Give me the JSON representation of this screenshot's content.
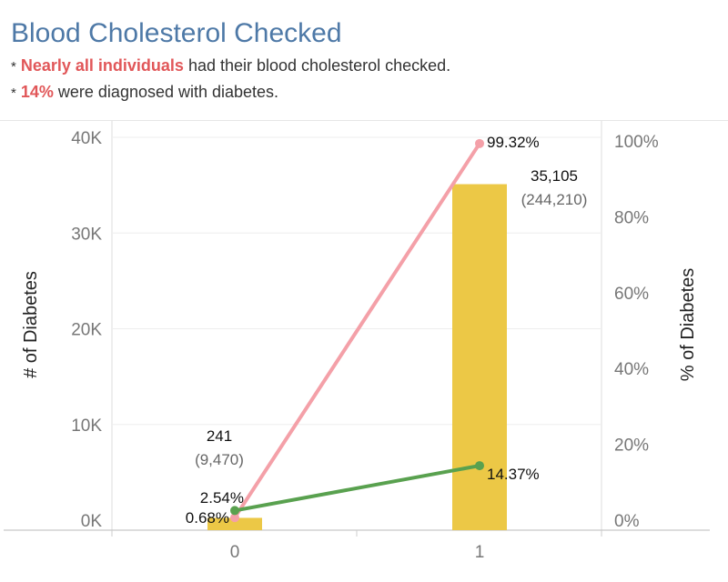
{
  "header": {
    "title": "Blood Cholesterol Checked",
    "line1": {
      "bullet": "*",
      "highlight": "Nearly all individuals",
      "rest": "had their blood cholesterol checked."
    },
    "line2": {
      "bullet": "*",
      "highlight": "14%",
      "rest": "were diagnosed with diabetes."
    }
  },
  "chart_data": {
    "type": "bar",
    "categories": [
      "0",
      "1"
    ],
    "ylabel": "# of Diabetes",
    "y2label": "% of Diabetes",
    "ylim": [
      0,
      40000
    ],
    "y2lim": [
      0,
      100
    ],
    "yticks": [
      0,
      10000,
      20000,
      30000,
      40000
    ],
    "yticklabels": [
      "0K",
      "10K",
      "20K",
      "30K",
      "40K"
    ],
    "y2ticks": [
      0,
      20,
      40,
      60,
      80,
      100
    ],
    "y2ticklabels": [
      "0%",
      "20%",
      "40%",
      "60%",
      "80%",
      "100%"
    ],
    "grid": true,
    "bars": {
      "values": [
        241,
        35105
      ],
      "value_labels": [
        "241",
        "35,105"
      ],
      "total_labels": [
        "(9,470)",
        "(244,210)"
      ],
      "color": "#ecc846"
    },
    "series": [
      {
        "type": "line",
        "axis": "right",
        "values": [
          0.68,
          99.32
        ],
        "labels": [
          "0.68%",
          "99.32%"
        ],
        "color": "#f4a0a8"
      },
      {
        "type": "line",
        "axis": "right",
        "values": [
          2.54,
          14.37
        ],
        "labels": [
          "2.54%",
          "14.37%"
        ],
        "color": "#59a14f"
      }
    ]
  }
}
